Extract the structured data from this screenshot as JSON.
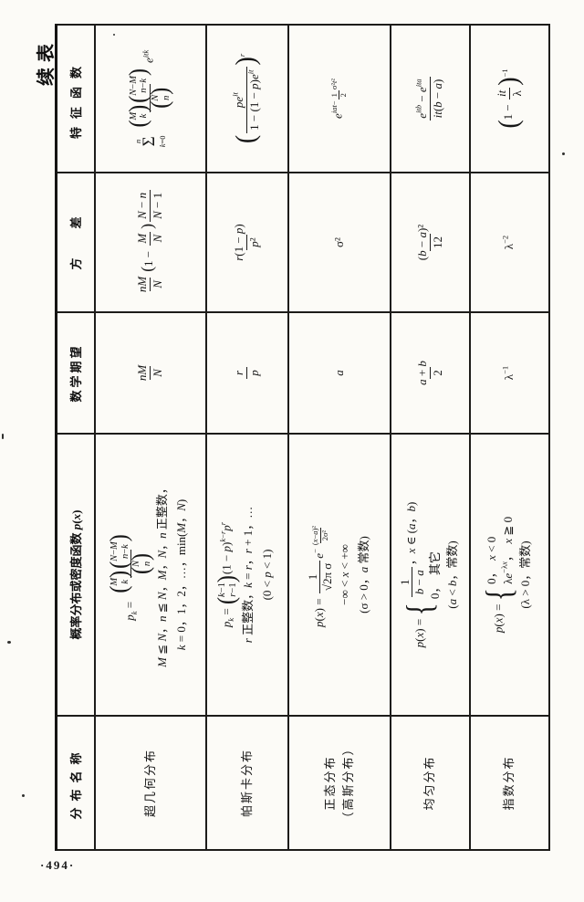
{
  "page": {
    "continued_label": "续表",
    "page_number": "·494·"
  },
  "table": {
    "headers": {
      "name": "分布名称",
      "pdf_html": "概率分布或密度函数 <i>p</i>(<i>x</i>)",
      "mean": "数学期望",
      "variance": "方　　差",
      "cf": "特征函数"
    },
    "rows": [
      {
        "name": "超几何分布",
        "name2": "",
        "pdf_html": "<span class=\"ln\"><i>p</i><sub><i>k</i></sub> = <span class=\"fr\"><span class=\"n\"><span class=\"bn\"><span class=\"bp\">(</span><span class=\"bc\"><span><i>M</i></span><span><i>k</i></span></span><span class=\"bp\">)</span></span><span class=\"bn\"><span class=\"bp\">(</span><span class=\"bc\"><span><i>N</i>−<i>M</i></span><span><i>n</i>−<i>k</i></span></span><span class=\"bp\">)</span></span></span><span class=\"d\"><span class=\"bn\"><span class=\"bp\">(</span><span class=\"bc\"><span><i>N</i></span><span><i>n</i></span></span><span class=\"bp\">)</span></span></span></span></span><span class=\"ln\"><i>M</i> ≦ <i>N</i>，<i>n</i> ≦ <i>N</i>，<i>M</i>，<i>N</i>，<i>n</i> 正整数，</span><span class=\"ln\"><i>k</i> = 0，1，2，…，min(<i>M</i>，<i>N</i>)</span>",
        "mean_html": "<span class=\"fr\"><span class=\"n\"><i>nM</i></span><span class=\"d\"><i>N</i></span></span>",
        "var_html": "<span class=\"fr\"><span class=\"n\"><i>nM</i></span><span class=\"d\"><i>N</i></span></span><span class=\"op\">(</span>1 − <span class=\"fr\"><span class=\"n\"><i>M</i></span><span class=\"d\"><i>N</i></span></span><span class=\"op\">)</span><span class=\"fr\"><span class=\"n\"><i>N</i> − <i>n</i></span><span class=\"d\"><i>N</i> − 1</span></span>",
        "cf_html": "<span class=\"sum\"><span class=\"st\"><i>n</i></span><span class=\"sg\">Σ</span><span class=\"sb\"><i>k</i>=0</span></span><span class=\"fr\"><span class=\"n\"><span class=\"bn\"><span class=\"bp\">(</span><span class=\"bc\"><span><i>M</i></span><span><i>k</i></span></span><span class=\"bp\">)</span></span><span class=\"bn\"><span class=\"bp\">(</span><span class=\"bc\"><span><i>N</i>−<i>M</i></span><span><i>n</i>−<i>k</i></span></span><span class=\"bp\">)</span></span></span><span class=\"d\"><span class=\"bn\"><span class=\"bp\">(</span><span class=\"bc\"><span><i>N</i></span><span><i>n</i></span></span><span class=\"bp\">)</span></span></span></span><i>e</i><sup><i>itk</i></sup>"
      },
      {
        "name": "帕斯卡分布",
        "name2": "",
        "pdf_html": "<span class=\"ln\"><i>p</i><sub><i>k</i></sub> = <span class=\"bn\"><span class=\"bp\">(</span><span class=\"bc\"><span><i>k</i>−1</span><span><i>r</i>−1</span></span><span class=\"bp\">)</span></span>(1 − <i>p</i>)<sup><i>k</i>−<i>r</i></sup><i>p</i><sup><i>r</i></sup></span><span class=\"ln\"><i>r</i> 正整数，<i>k</i> = <i>r</i>，<i>r</i> + 1，…</span><span class=\"ln\">(0 &lt; <i>p</i> &lt; 1)</span>",
        "mean_html": "<span class=\"fr\"><span class=\"n\"><i>r</i></span><span class=\"d\"><i>p</i></span></span>",
        "var_html": "<span class=\"fr\"><span class=\"n\"><i>r</i>(1 − <i>p</i>)</span><span class=\"d\"><i>p</i>²</span></span>",
        "cf_html": "<span class=\"op big\">(</span><span class=\"fr\"><span class=\"n\"><i>pe</i><sup><i>it</i></sup></span><span class=\"d\">1 − (1 − <i>p</i>)<i>e</i><sup><i>it</i></sup></span></span><span class=\"op big\">)</span><sup><i>r</i></sup>"
      },
      {
        "name": "正态分布",
        "name2": "（高斯分布）",
        "pdf_html": "<span class=\"ln\"><i>p</i>(<i>x</i>) = <span class=\"fr\"><span class=\"n\">1</span><span class=\"d\">√<span class=\"ol\">2π</span> σ</span></span><i>e</i><sup>−<span class=\"fr tiny\"><span class=\"n\">(<i>x</i>−<i>a</i>)²</span><span class=\"d\">2σ²</span></span></sup></span><span class=\"ln\">−∞ &lt; <i>x</i> &lt; +∞</span><span class=\"ln\">(σ &gt; 0，<i>a</i> 常数)</span>",
        "mean_html": "<i>a</i>",
        "var_html": "σ²",
        "cf_html": "<i>e</i><sup><i>iat</i>−<span class=\"fr tiny\"><span class=\"n\">1</span><span class=\"d\">2</span></span>σ²<i>t</i>²</sup>"
      },
      {
        "name": "均匀分布",
        "name2": "",
        "pdf_html": "<span class=\"ln\"><i>p</i>(<i>x</i>) = <span class=\"cs\"><span class=\"cb\">{</span><span class=\"cr\"><span><span class=\"fr\"><span class=\"n\">1</span><span class=\"d\"><i>b</i> − <i>a</i></span></span>，<i>x</i> ∈ (<i>a</i>，<i>b</i>)</span><span>0，　其它</span></span></span></span><span class=\"ln\">(<i>a</i> &lt; <i>b</i>，常数)</span>",
        "mean_html": "<span class=\"fr\"><span class=\"n\"><i>a</i> + <i>b</i></span><span class=\"d\">2</span></span>",
        "var_html": "<span class=\"fr\"><span class=\"n\">(<i>b</i> − <i>a</i>)²</span><span class=\"d\">12</span></span>",
        "cf_html": "<span class=\"fr\"><span class=\"n\"><i>e</i><sup><i>itb</i></sup> − <i>e</i><sup><i>ita</i></sup></span><span class=\"d\"><i>it</i>(<i>b</i> − <i>a</i>)</span></span>"
      },
      {
        "name": "指数分布",
        "name2": "",
        "pdf_html": "<span class=\"ln\"><i>p</i>(<i>x</i>) = <span class=\"cs\"><span class=\"cb\">{</span><span class=\"cr\"><span>0，　<i>x</i> &lt; 0</span><span>λ<i>e</i><sup>−λ<i>x</i></sup>，　<i>x</i> ≧ 0</span></span></span></span><span class=\"ln\">(λ &gt; 0，常数)</span>",
        "mean_html": "λ<sup>−1</sup>",
        "var_html": "λ<sup>−2</sup>",
        "cf_html": "<span class=\"op big\">(</span>1 − <span class=\"fr\"><span class=\"n\"><i>it</i></span><span class=\"d\">λ</span></span><span class=\"op big\">)</span><sup>−1</sup>"
      }
    ]
  }
}
